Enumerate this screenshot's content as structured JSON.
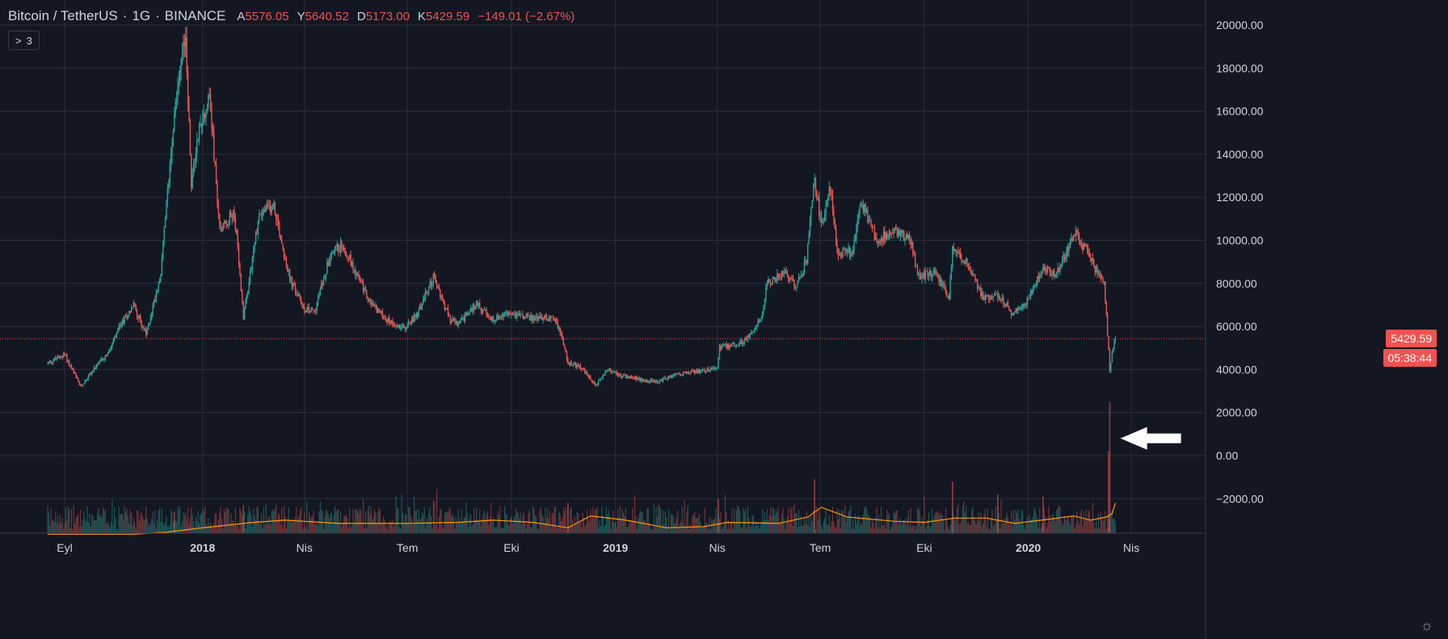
{
  "header": {
    "symbol": "Bitcoin / TetherUS",
    "interval": "1G",
    "exchange": "BINANCE",
    "open_key": "A",
    "open": "5576.05",
    "high_key": "Y",
    "high": "5640.52",
    "low_key": "D",
    "low": "5173.00",
    "close_key": "K",
    "close": "5429.59",
    "change": "−149.01 (−2.67%)"
  },
  "indicators_toggle": {
    "chevron": ">",
    "count": "3"
  },
  "last_price_label": "5429.59",
  "countdown_label": "05:38:44",
  "colors": {
    "background": "#131722",
    "grid": "#2a2e39",
    "up": "#26a69a",
    "down": "#ef5350",
    "volume_ma": "#ff9800"
  },
  "chart_data": {
    "type": "candlestick",
    "symbol": "BTCUSDT",
    "price_axis": {
      "ylim": [
        -3700,
        21000
      ],
      "ticks": [
        20000,
        18000,
        16000,
        14000,
        12000,
        10000,
        8000,
        6000,
        4000,
        2000,
        0,
        -2000
      ],
      "tick_labels": [
        "20000.00",
        "18000.00",
        "16000.00",
        "14000.00",
        "12000.00",
        "10000.00",
        "8000.00",
        "6000.00",
        "4000.00",
        "2000.00",
        "0.00",
        "−2000.00"
      ]
    },
    "time_axis": {
      "range": [
        "2017-08-17",
        "2020-04-20"
      ],
      "labels": [
        {
          "text": "Eyl",
          "date": "2017-09-01"
        },
        {
          "text": "2018",
          "date": "2018-01-01"
        },
        {
          "text": "Nis",
          "date": "2018-04-01"
        },
        {
          "text": "Tem",
          "date": "2018-07-01"
        },
        {
          "text": "Eki",
          "date": "2018-10-01"
        },
        {
          "text": "2019",
          "date": "2019-01-01"
        },
        {
          "text": "Nis",
          "date": "2019-04-01"
        },
        {
          "text": "Tem",
          "date": "2019-07-01"
        },
        {
          "text": "Eki",
          "date": "2019-10-01"
        },
        {
          "text": "2020",
          "date": "2020-01-01"
        },
        {
          "text": "Nis",
          "date": "2020-04-01"
        }
      ]
    },
    "price_path": [
      [
        "2017-08-17",
        4300
      ],
      [
        "2017-09-01",
        4700
      ],
      [
        "2017-09-15",
        3200
      ],
      [
        "2017-09-25",
        3900
      ],
      [
        "2017-10-10",
        4800
      ],
      [
        "2017-10-20",
        6000
      ],
      [
        "2017-11-01",
        7000
      ],
      [
        "2017-11-12",
        5600
      ],
      [
        "2017-11-25",
        8500
      ],
      [
        "2017-12-07",
        16000
      ],
      [
        "2017-12-17",
        19500
      ],
      [
        "2017-12-22",
        12500
      ],
      [
        "2017-12-28",
        15000
      ],
      [
        "2018-01-07",
        16800
      ],
      [
        "2018-01-16",
        10500
      ],
      [
        "2018-01-29",
        11300
      ],
      [
        "2018-02-06",
        6500
      ],
      [
        "2018-02-20",
        11200
      ],
      [
        "2018-03-05",
        11600
      ],
      [
        "2018-03-19",
        8200
      ],
      [
        "2018-04-01",
        6800
      ],
      [
        "2018-04-10",
        6700
      ],
      [
        "2018-04-24",
        9400
      ],
      [
        "2018-05-05",
        9800
      ],
      [
        "2018-05-28",
        7200
      ],
      [
        "2018-06-13",
        6300
      ],
      [
        "2018-06-29",
        5900
      ],
      [
        "2018-07-10",
        6600
      ],
      [
        "2018-07-24",
        8300
      ],
      [
        "2018-08-08",
        6300
      ],
      [
        "2018-08-15",
        6100
      ],
      [
        "2018-09-01",
        7100
      ],
      [
        "2018-09-12",
        6300
      ],
      [
        "2018-10-01",
        6600
      ],
      [
        "2018-10-15",
        6400
      ],
      [
        "2018-11-08",
        6400
      ],
      [
        "2018-11-14",
        5600
      ],
      [
        "2018-11-20",
        4300
      ],
      [
        "2018-12-01",
        4100
      ],
      [
        "2018-12-15",
        3250
      ],
      [
        "2018-12-24",
        4000
      ],
      [
        "2019-01-10",
        3650
      ],
      [
        "2019-02-07",
        3400
      ],
      [
        "2019-02-25",
        3800
      ],
      [
        "2019-03-15",
        3900
      ],
      [
        "2019-04-01",
        4100
      ],
      [
        "2019-04-03",
        5000
      ],
      [
        "2019-04-25",
        5300
      ],
      [
        "2019-05-10",
        6400
      ],
      [
        "2019-05-15",
        8000
      ],
      [
        "2019-05-30",
        8500
      ],
      [
        "2019-06-10",
        7800
      ],
      [
        "2019-06-19",
        9100
      ],
      [
        "2019-06-26",
        12900
      ],
      [
        "2019-07-02",
        10600
      ],
      [
        "2019-07-10",
        12500
      ],
      [
        "2019-07-16",
        9400
      ],
      [
        "2019-07-30",
        9500
      ],
      [
        "2019-08-06",
        11800
      ],
      [
        "2019-08-20",
        10000
      ],
      [
        "2019-09-05",
        10500
      ],
      [
        "2019-09-20",
        9900
      ],
      [
        "2019-09-25",
        8300
      ],
      [
        "2019-10-10",
        8500
      ],
      [
        "2019-10-23",
        7400
      ],
      [
        "2019-10-26",
        9500
      ],
      [
        "2019-11-10",
        8800
      ],
      [
        "2019-11-22",
        7300
      ],
      [
        "2019-12-05",
        7500
      ],
      [
        "2019-12-18",
        6600
      ],
      [
        "2019-12-31",
        7200
      ],
      [
        "2020-01-14",
        8800
      ],
      [
        "2020-01-25",
        8400
      ],
      [
        "2020-02-03",
        9400
      ],
      [
        "2020-02-12",
        10300
      ],
      [
        "2020-02-20",
        9600
      ],
      [
        "2020-03-01",
        8600
      ],
      [
        "2020-03-08",
        8000
      ],
      [
        "2020-03-12",
        4900
      ],
      [
        "2020-03-13",
        4000
      ],
      [
        "2020-03-16",
        5100
      ],
      [
        "2020-03-18",
        5429.59
      ]
    ],
    "volume_ma_path": [
      [
        "2017-08-17",
        -3650
      ],
      [
        "2017-11-01",
        -3650
      ],
      [
        "2017-12-01",
        -3550
      ],
      [
        "2018-01-01",
        -3350
      ],
      [
        "2018-02-15",
        -3100
      ],
      [
        "2018-03-15",
        -3000
      ],
      [
        "2018-05-01",
        -3150
      ],
      [
        "2018-07-01",
        -3150
      ],
      [
        "2018-08-15",
        -3100
      ],
      [
        "2018-09-15",
        -3000
      ],
      [
        "2018-10-20",
        -3100
      ],
      [
        "2018-11-20",
        -3350
      ],
      [
        "2018-12-10",
        -2800
      ],
      [
        "2019-01-10",
        -3000
      ],
      [
        "2019-02-15",
        -3350
      ],
      [
        "2019-03-20",
        -3300
      ],
      [
        "2019-04-10",
        -3100
      ],
      [
        "2019-05-25",
        -3150
      ],
      [
        "2019-06-20",
        -2850
      ],
      [
        "2019-07-02",
        -2400
      ],
      [
        "2019-07-25",
        -2850
      ],
      [
        "2019-09-05",
        -3050
      ],
      [
        "2019-10-01",
        -3100
      ],
      [
        "2019-10-28",
        -2900
      ],
      [
        "2019-11-25",
        -2900
      ],
      [
        "2019-12-20",
        -3150
      ],
      [
        "2020-01-20",
        -2950
      ],
      [
        "2020-02-10",
        -2800
      ],
      [
        "2020-02-25",
        -3000
      ],
      [
        "2020-03-10",
        -2850
      ],
      [
        "2020-03-15",
        -2700
      ],
      [
        "2020-03-18",
        -2200
      ]
    ],
    "volume_spikes": [
      [
        "2017-12-07",
        -2600
      ],
      [
        "2018-02-06",
        -2300
      ],
      [
        "2018-11-20",
        -2200
      ],
      [
        "2019-04-02",
        -2000
      ],
      [
        "2019-06-26",
        -1100
      ],
      [
        "2019-10-26",
        -1200
      ],
      [
        "2019-12-05",
        -1800
      ],
      [
        "2020-01-14",
        -1900
      ],
      [
        "2020-03-12",
        200
      ],
      [
        "2020-03-13",
        2500
      ]
    ],
    "last_price": 5429.59,
    "annotations": [
      {
        "type": "left-pointing-arrow",
        "date": "2020-03-26",
        "value": 800
      }
    ]
  }
}
